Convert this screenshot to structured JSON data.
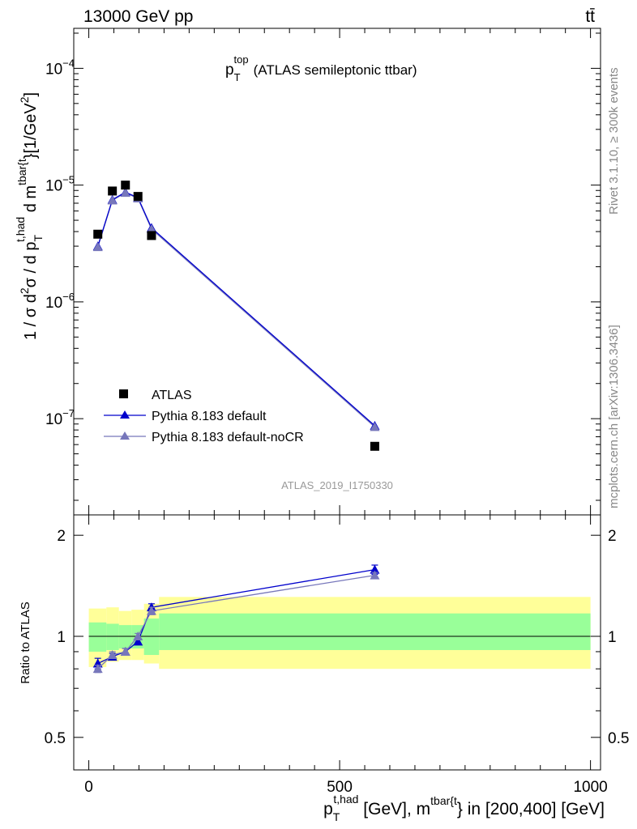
{
  "header": {
    "left": "13000 GeV pp",
    "right": "tt̄"
  },
  "side_labels": {
    "rivet": "Rivet 3.1.10, ≥ 300k events",
    "mcplots": "mcplots.cern.ch [arXiv:1306.3436]"
  },
  "colors": {
    "atlas": "#000000",
    "default": "#0000cc",
    "nocr": "#7777bb",
    "band_outer": "#ffff99",
    "band_inner": "#99ff99",
    "watermark": "#999999"
  },
  "chart_data": [
    {
      "type": "scatter",
      "panel": "main",
      "title": {
        "main": "p",
        "sub": "T",
        "sup": "top",
        "rest": "(ATLAS semileptonic ttbar)"
      },
      "ylabel": "1 / σ d²σ / d p_T^{t,had} d m^{tbar{t}} [1/GeV²]",
      "ylabel_parts": {
        "a": "1 / σ d",
        "sup1": "2",
        "b": "σ / d p",
        "sub1": "T",
        "sup2": "t,had",
        "c": " d m",
        "sup3": "tbar{t",
        "d": "}[1/GeV",
        "sup4": "2",
        "e": "]"
      },
      "yscale": "log",
      "ylim": [
        1.5e-08,
        0.00022
      ],
      "xlim": [
        -30,
        1020
      ],
      "y_ticks": [
        {
          "value": 0.0001,
          "base": "10",
          "exp": "−4"
        },
        {
          "value": 1e-05,
          "base": "10",
          "exp": "−5"
        },
        {
          "value": 1e-06,
          "base": "10",
          "exp": "−6"
        },
        {
          "value": 1e-07,
          "base": "10",
          "exp": "−7"
        }
      ],
      "watermark": "ATLAS_2019_I1750330",
      "legend": {
        "position": "lower-left",
        "entries": [
          {
            "key": "atlas",
            "label": "ATLAS"
          },
          {
            "key": "default",
            "label": "Pythia 8.183 default"
          },
          {
            "key": "nocr",
            "label": "Pythia 8.183 default-noCR"
          }
        ]
      },
      "series": [
        {
          "key": "atlas",
          "name": "ATLAS",
          "marker": "square",
          "points": [
            [
              18,
              3.8e-06
            ],
            [
              47,
              8.9e-06
            ],
            [
              73,
              1e-05
            ],
            [
              98,
              8e-06
            ],
            [
              125,
              3.7e-06
            ],
            [
              570,
              5.8e-08
            ]
          ]
        },
        {
          "key": "default",
          "name": "Pythia 8.183 default",
          "marker": "triangle",
          "points": [
            [
              18,
              3e-06
            ],
            [
              47,
              7.5e-06
            ],
            [
              73,
              8.7e-06
            ],
            [
              98,
              7.8e-06
            ],
            [
              125,
              4.3e-06
            ],
            [
              570,
              8.7e-08
            ]
          ]
        },
        {
          "key": "nocr",
          "name": "Pythia 8.183 default-noCR",
          "marker": "triangle",
          "points": [
            [
              18,
              2.95e-06
            ],
            [
              47,
              7.4e-06
            ],
            [
              73,
              8.6e-06
            ],
            [
              98,
              7.7e-06
            ],
            [
              125,
              4.2e-06
            ],
            [
              570,
              8.5e-08
            ]
          ]
        }
      ]
    },
    {
      "type": "line",
      "panel": "ratio",
      "ylabel": "Ratio to ATLAS",
      "xlabel": "p_T^{t,had} [GeV], m^{tbar{t}} in [200,400] [GeV]",
      "xlabel_parts": {
        "a": "p",
        "sub": "T",
        "sup1": "t,had",
        "b": " [GeV], m",
        "sup2": "tbar{t",
        "c": "} in [200,400] [GeV]"
      },
      "yscale": "log",
      "ylim": [
        0.4,
        2.3
      ],
      "xlim": [
        -30,
        1020
      ],
      "y_ticks_left": [
        {
          "value": 2,
          "label": "2"
        },
        {
          "value": 1,
          "label": "1"
        },
        {
          "value": 0.5,
          "label": "0.5"
        }
      ],
      "y_ticks_right": [
        {
          "value": 2,
          "label": "2"
        },
        {
          "value": 1,
          "label": "1"
        },
        {
          "value": 0.5,
          "label": "0.5"
        }
      ],
      "x_ticks": [
        {
          "value": 0,
          "label": "0"
        },
        {
          "value": 500,
          "label": "500"
        },
        {
          "value": 1000,
          "label": "1000"
        }
      ],
      "bands": [
        {
          "x0": 0,
          "x1": 35,
          "outer": [
            0.81,
            1.21
          ],
          "inner": [
            0.9,
            1.1
          ]
        },
        {
          "x0": 35,
          "x1": 60,
          "outer": [
            0.84,
            1.22
          ],
          "inner": [
            0.91,
            1.09
          ]
        },
        {
          "x0": 60,
          "x1": 85,
          "outer": [
            0.85,
            1.19
          ],
          "inner": [
            0.92,
            1.08
          ]
        },
        {
          "x0": 85,
          "x1": 110,
          "outer": [
            0.85,
            1.2
          ],
          "inner": [
            0.92,
            1.08
          ]
        },
        {
          "x0": 110,
          "x1": 140,
          "outer": [
            0.83,
            1.25
          ],
          "inner": [
            0.88,
            1.13
          ]
        },
        {
          "x0": 140,
          "x1": 1000,
          "outer": [
            0.8,
            1.31
          ],
          "inner": [
            0.91,
            1.17
          ]
        }
      ],
      "series": [
        {
          "key": "default",
          "name": "Pythia 8.183 default",
          "points": [
            [
              18,
              0.83,
              0.03
            ],
            [
              47,
              0.87,
              0.02
            ],
            [
              73,
              0.9,
              0.02
            ],
            [
              98,
              0.965,
              0.02
            ],
            [
              125,
              1.22,
              0.03
            ],
            [
              570,
              1.58,
              0.05
            ]
          ]
        },
        {
          "key": "nocr",
          "name": "Pythia 8.183 default-noCR",
          "points": [
            [
              18,
              0.8,
              0.02
            ],
            [
              47,
              0.88,
              0.02
            ],
            [
              73,
              0.9,
              0.02
            ],
            [
              98,
              1.0,
              0.02
            ],
            [
              125,
              1.19,
              0.03
            ],
            [
              570,
              1.52,
              0.03
            ]
          ]
        }
      ]
    }
  ]
}
